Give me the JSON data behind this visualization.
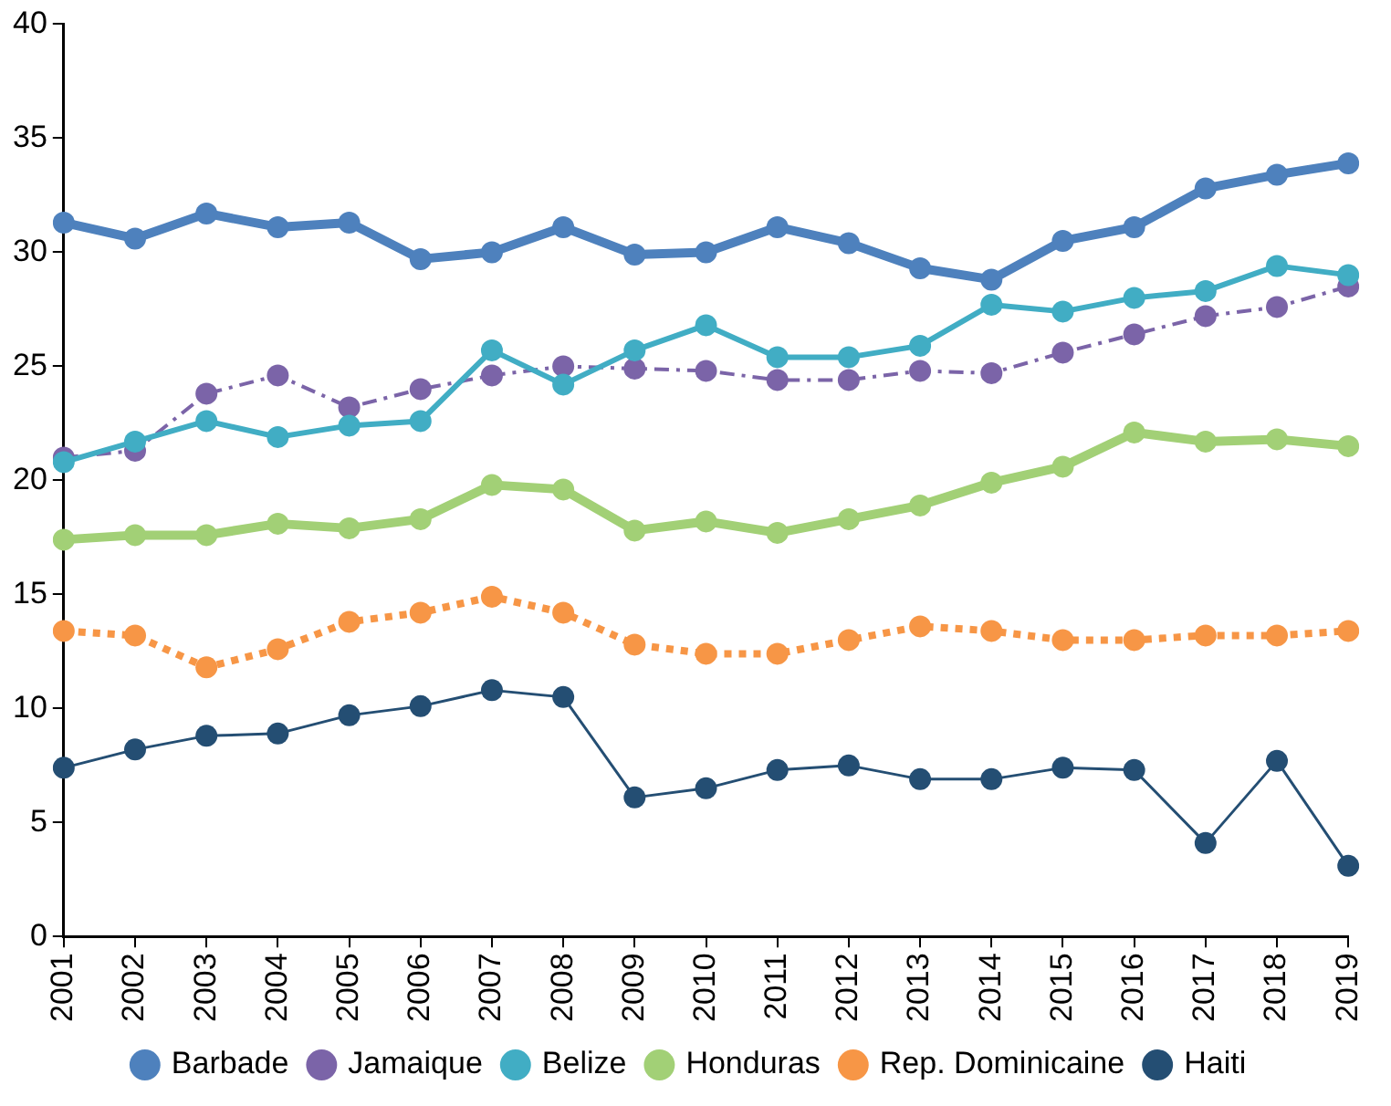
{
  "chart_data": {
    "type": "line",
    "categories": [
      "2001",
      "2002",
      "2003",
      "2004",
      "2005",
      "2006",
      "2007",
      "2008",
      "2009",
      "2010",
      "2011",
      "2012",
      "2013",
      "2014",
      "2015",
      "2016",
      "2017",
      "2018",
      "2019"
    ],
    "ylim": [
      0,
      40
    ],
    "yticks": [
      0,
      5,
      10,
      15,
      20,
      25,
      30,
      35,
      40
    ],
    "grid": false,
    "legend": "bottom",
    "marker": "circle",
    "series": [
      {
        "name": "Barbade",
        "color": "#4e81bd",
        "line_style": "solid",
        "values": [
          31.3,
          30.6,
          31.7,
          31.1,
          31.3,
          29.7,
          30.0,
          31.1,
          29.9,
          30.0,
          31.1,
          30.4,
          29.3,
          28.8,
          30.5,
          31.1,
          32.8,
          33.4,
          33.9
        ]
      },
      {
        "name": "Jamaique",
        "color": "#7b64a8",
        "line_style": "dashdot",
        "values": [
          21.0,
          21.3,
          23.8,
          24.6,
          23.2,
          24.0,
          24.6,
          25.0,
          24.9,
          24.8,
          24.4,
          24.4,
          24.8,
          24.7,
          25.6,
          26.4,
          27.2,
          27.6,
          28.5
        ]
      },
      {
        "name": "Belize",
        "color": "#41adc4",
        "line_style": "solid",
        "values": [
          20.8,
          21.7,
          22.6,
          21.9,
          22.4,
          22.6,
          25.7,
          24.2,
          25.7,
          26.8,
          25.4,
          25.4,
          25.9,
          27.7,
          27.4,
          28.0,
          28.3,
          29.4,
          29.0
        ]
      },
      {
        "name": "Honduras",
        "color": "#a2d076",
        "line_style": "solid",
        "values": [
          17.4,
          17.6,
          17.6,
          18.1,
          17.9,
          18.3,
          19.8,
          19.6,
          17.8,
          18.2,
          17.7,
          18.3,
          18.9,
          19.9,
          20.6,
          22.1,
          21.7,
          21.8,
          21.5
        ]
      },
      {
        "name": "Rep. Dominicaine",
        "color": "#f79646",
        "line_style": "dotted",
        "values": [
          13.4,
          13.2,
          11.8,
          12.6,
          13.8,
          14.2,
          14.9,
          14.2,
          12.8,
          12.4,
          12.4,
          13.0,
          13.6,
          13.4,
          13.0,
          13.0,
          13.2,
          13.2,
          13.4
        ]
      },
      {
        "name": "Haiti",
        "color": "#244e73",
        "line_style": "solid",
        "values": [
          7.4,
          8.2,
          8.8,
          8.9,
          9.7,
          10.1,
          10.8,
          10.5,
          6.1,
          6.5,
          7.3,
          7.5,
          6.9,
          6.9,
          7.4,
          7.3,
          4.1,
          7.7,
          3.1
        ]
      }
    ]
  }
}
